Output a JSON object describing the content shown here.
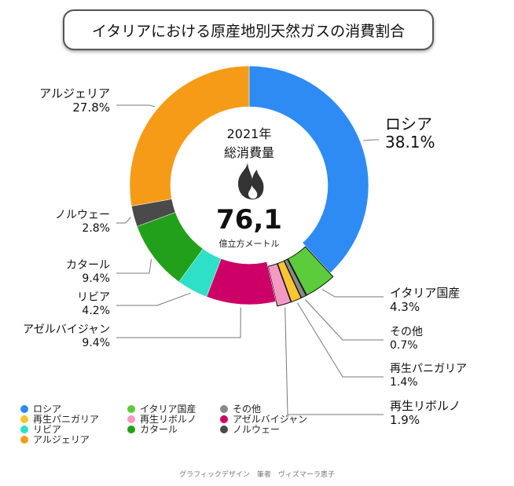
{
  "chart_data": {
    "type": "donut",
    "title": "イタリアにおける原産地別天然ガスの消費割合",
    "center": {
      "year": "2021年",
      "label": "総消費量",
      "value": "76,1",
      "unit": "億立方メートル"
    },
    "slices": [
      {
        "name": "ロシア",
        "value": 38.1,
        "label": "38.1%",
        "color": "#2e8bf3"
      },
      {
        "name": "イタリア国産",
        "value": 4.3,
        "label": "4.3%",
        "color": "#5ccc3d"
      },
      {
        "name": "その他",
        "value": 0.7,
        "label": "0.7%",
        "color": "#8a8a8a"
      },
      {
        "name": "再生パニガリア",
        "value": 1.4,
        "label": "1.4%",
        "color": "#f7c531"
      },
      {
        "name": "再生リボルノ",
        "value": 1.9,
        "label": "1.9%",
        "color": "#f49ac2"
      },
      {
        "name": "アゼルバイジャン",
        "value": 9.4,
        "label": "9.4%",
        "color": "#cc0066"
      },
      {
        "name": "リビア",
        "value": 4.2,
        "label": "4.2%",
        "color": "#2ee0c8"
      },
      {
        "name": "カタール",
        "value": 9.4,
        "label": "9.4%",
        "color": "#22a01c"
      },
      {
        "name": "ノルウェー",
        "value": 2.8,
        "label": "2.8%",
        "color": "#4a4a4a"
      },
      {
        "name": "アルジェリア",
        "value": 27.8,
        "label": "27.8%",
        "color": "#f59b18"
      }
    ],
    "legend_placement": "bottom-left"
  },
  "footer": {
    "credit": "グラフィックデザイン　筆者　ヴィズマーラ恵子"
  }
}
